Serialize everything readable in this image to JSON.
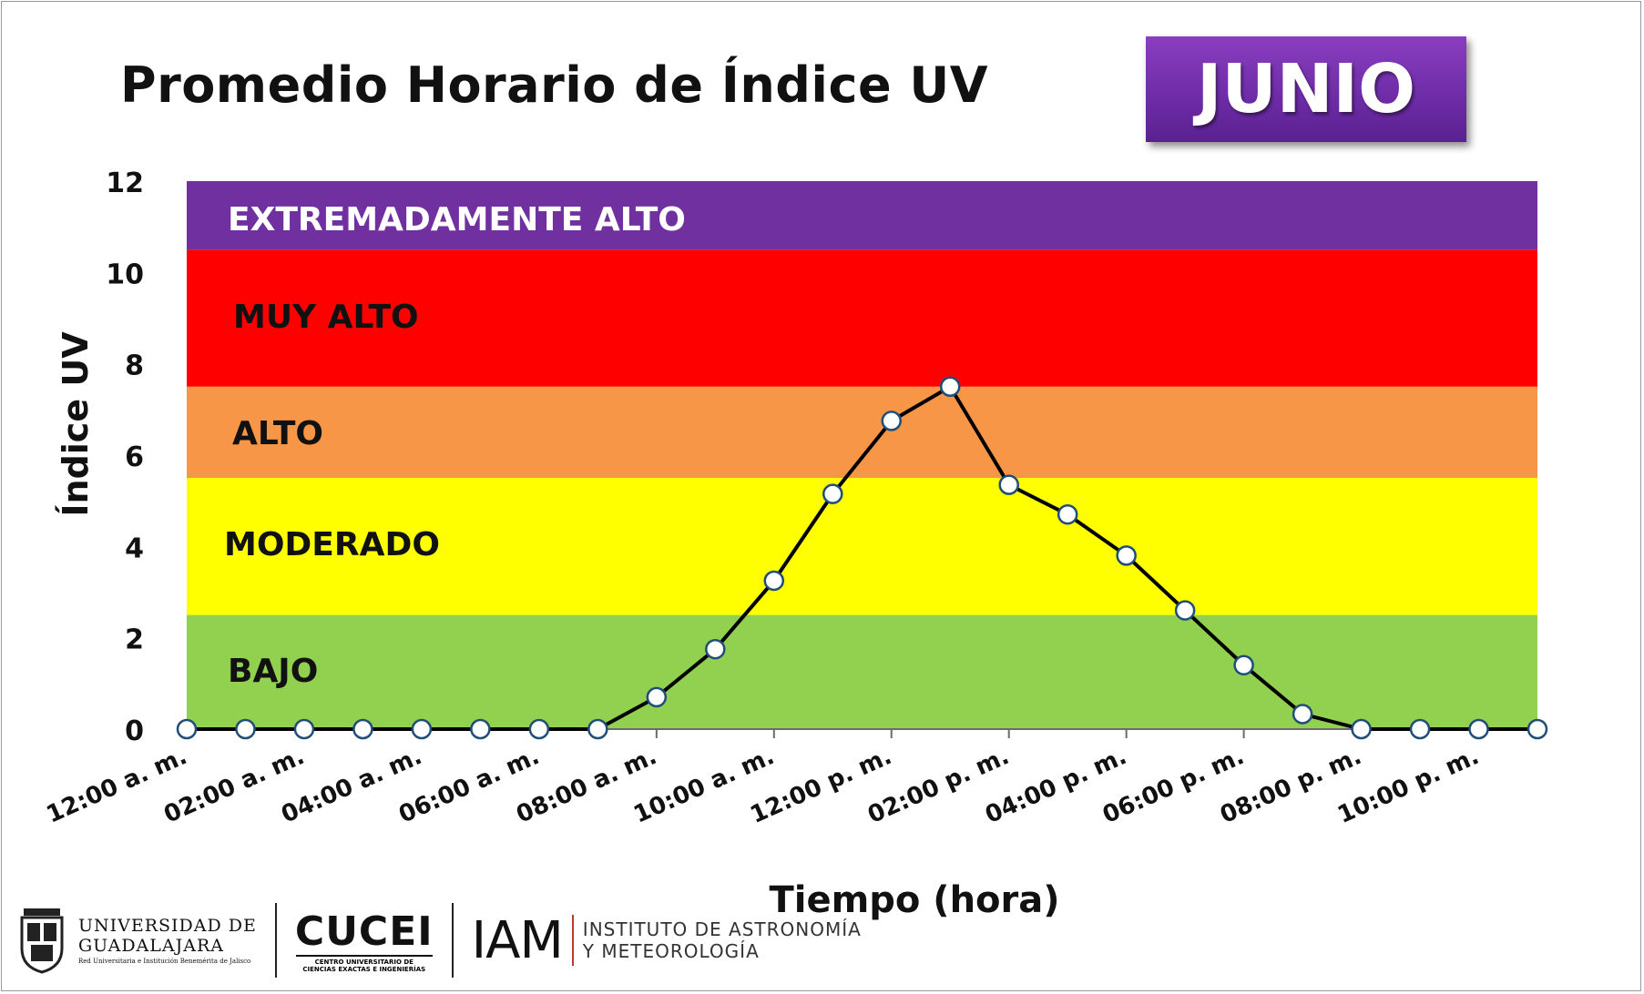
{
  "title": "Promedio Horario de Índice UV",
  "month": "JUNIO",
  "chart_data": {
    "type": "line",
    "title": "Promedio Horario de Índice UV",
    "xlabel": "Tiempo (hora)",
    "ylabel": "Índice UV",
    "ylim": [
      0,
      12
    ],
    "yticks": [
      0,
      2,
      4,
      6,
      8,
      10,
      12
    ],
    "x_tick_labels": [
      "12:00 a. m.",
      "02:00 a. m.",
      "04:00 a. m.",
      "06:00 a. m.",
      "08:00 a. m.",
      "10:00 a. m.",
      "12:00 p. m.",
      "02:00 p. m.",
      "04:00 p. m.",
      "06:00 p. m.",
      "08:00 p. m.",
      "10:00 p. m."
    ],
    "x": [
      0,
      1,
      2,
      3,
      4,
      5,
      6,
      7,
      8,
      9,
      10,
      11,
      12,
      13,
      14,
      15,
      16,
      17,
      18,
      19,
      20,
      21,
      22,
      23
    ],
    "series": [
      {
        "values": [
          0,
          0,
          0,
          0,
          0,
          0,
          0,
          0,
          0.7,
          1.75,
          3.25,
          5.15,
          6.75,
          7.5,
          5.35,
          4.7,
          3.8,
          2.6,
          1.4,
          0.33,
          0,
          0,
          0,
          0
        ]
      }
    ],
    "bands": [
      {
        "label": "BAJO",
        "from": 0,
        "to": 2.5,
        "color": "#92d050",
        "text_color": "#111111"
      },
      {
        "label": "MODERADO",
        "from": 2.5,
        "to": 5.5,
        "color": "#ffff00",
        "text_color": "#111111"
      },
      {
        "label": "ALTO",
        "from": 5.5,
        "to": 7.5,
        "color": "#f79646",
        "text_color": "#111111"
      },
      {
        "label": "MUY ALTO",
        "from": 7.5,
        "to": 10.5,
        "color": "#ff0000",
        "text_color": "#111111"
      },
      {
        "label": "EXTREMADAMENTE ALTO",
        "from": 10.5,
        "to": 12,
        "color": "#7030a0",
        "text_color": "#ffffff"
      }
    ],
    "grid": false,
    "legend": "none"
  },
  "logos": {
    "udg_name_1": "UNIVERSIDAD DE",
    "udg_name_2": "GUADALAJARA",
    "udg_sub": "Red Universitaria e Institución Benemérita de Jalisco",
    "cucei_name": "CUCEI",
    "cucei_sub_1": "CENTRO UNIVERSITARIO DE",
    "cucei_sub_2": "CIENCIAS EXACTAS E INGENIERÍAS",
    "iam_name": "IAM",
    "iam_sub_1": "INSTITUTO DE ASTRONOMÍA",
    "iam_sub_2": "Y METEOROLOGÍA"
  }
}
